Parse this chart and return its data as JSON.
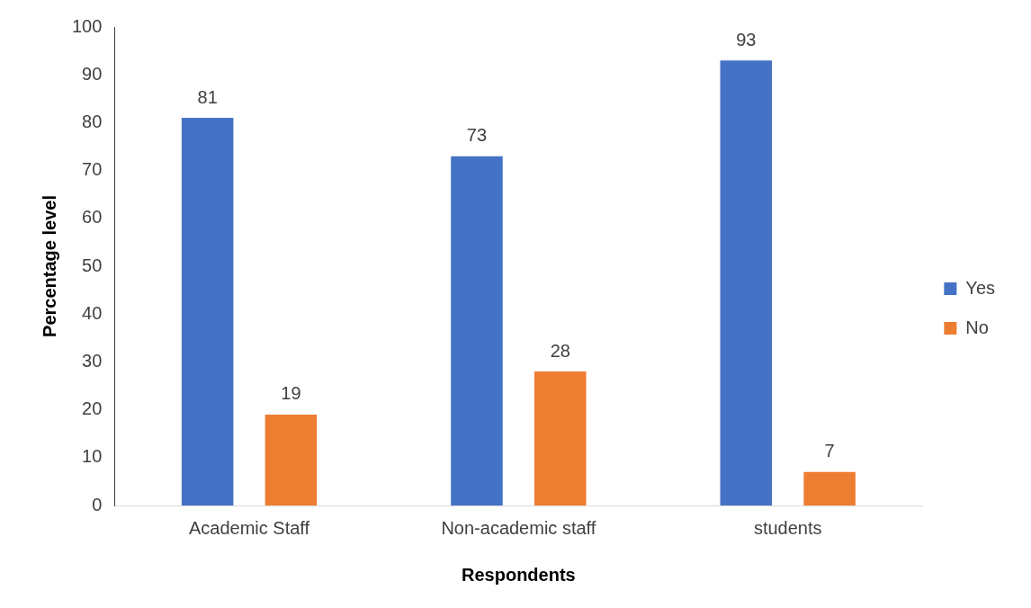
{
  "chart_data": {
    "type": "bar",
    "xlabel": "Respondents",
    "ylabel": "Percentage level",
    "categories": [
      "Academic Staff",
      "Non-academic staff",
      "students"
    ],
    "series": [
      {
        "name": "Yes",
        "color": "#4472c4",
        "values": [
          81,
          73,
          93
        ]
      },
      {
        "name": "No",
        "color": "#ed7d31",
        "values": [
          19,
          28,
          7
        ]
      }
    ],
    "ylim": [
      0,
      100
    ],
    "yticks": [
      0,
      10,
      20,
      30,
      40,
      50,
      60,
      70,
      80,
      90,
      100
    ],
    "grid": false,
    "legend": "right",
    "data_labels": true
  }
}
